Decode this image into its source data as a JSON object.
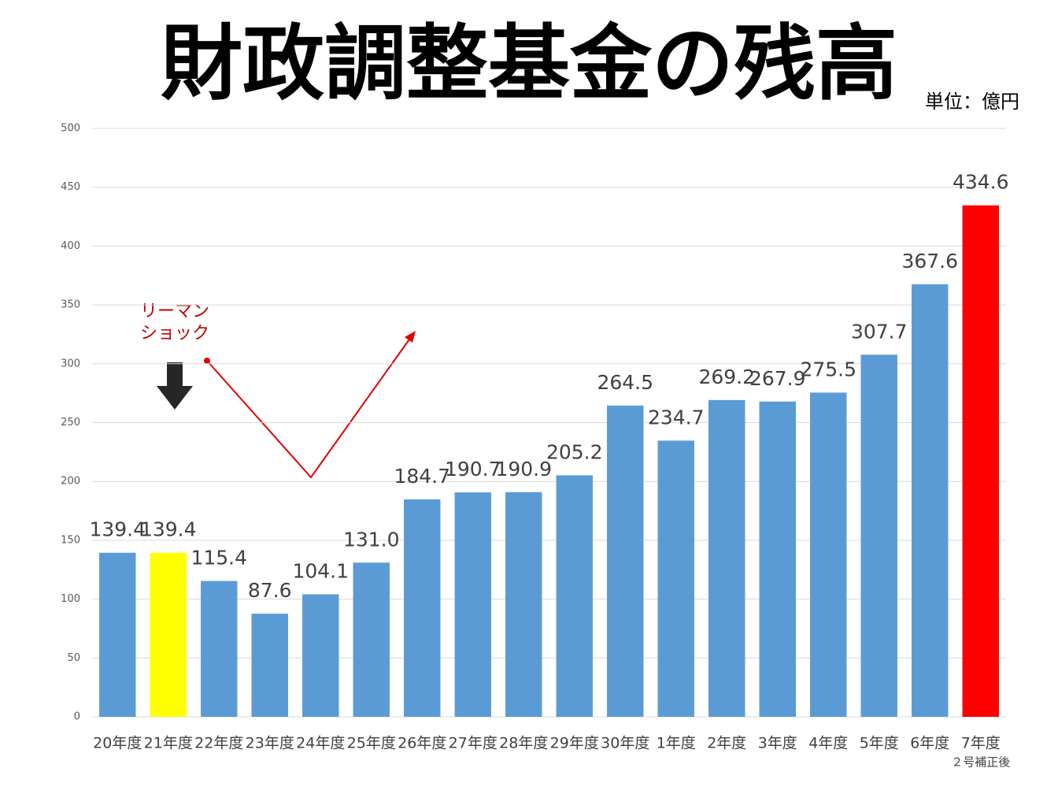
{
  "chart_data": {
    "type": "bar",
    "title": "財政調整基金の残高",
    "unit_label": "単位：億円",
    "annotations": [
      "リーマン",
      "ショック"
    ],
    "categories": [
      "20年度",
      "21年度",
      "22年度",
      "23年度",
      "24年度",
      "25年度",
      "26年度",
      "27年度",
      "28年度",
      "29年度",
      "30年度",
      "1年度",
      "2年度",
      "3年度",
      "4年度",
      "5年度",
      "6年度",
      "7年度"
    ],
    "category_note": "２号補正後",
    "values": [
      139.4,
      139.4,
      115.4,
      87.6,
      104.1,
      131.0,
      184.7,
      190.7,
      190.9,
      205.2,
      264.5,
      234.7,
      269.2,
      267.9,
      275.5,
      307.7,
      367.6,
      434.6
    ],
    "value_labels": [
      "139.4",
      "139.4",
      "115.4",
      "87.6",
      "104.1",
      "131.0",
      "184.7",
      "190.7",
      "190.9",
      "205.2",
      "264.5",
      "234.7",
      "269.2",
      "267.9",
      "275.5",
      "307.7",
      "367.6",
      "434.6"
    ],
    "colors": [
      "#5b9bd5",
      "#ffff00",
      "#5b9bd5",
      "#5b9bd5",
      "#5b9bd5",
      "#5b9bd5",
      "#5b9bd5",
      "#5b9bd5",
      "#5b9bd5",
      "#5b9bd5",
      "#5b9bd5",
      "#5b9bd5",
      "#5b9bd5",
      "#5b9bd5",
      "#5b9bd5",
      "#5b9bd5",
      "#5b9bd5",
      "#ff0000"
    ],
    "ylim": [
      0,
      500
    ],
    "yticks": [
      0,
      50,
      100,
      150,
      200,
      250,
      300,
      350,
      400,
      450,
      500
    ],
    "grid": true
  }
}
